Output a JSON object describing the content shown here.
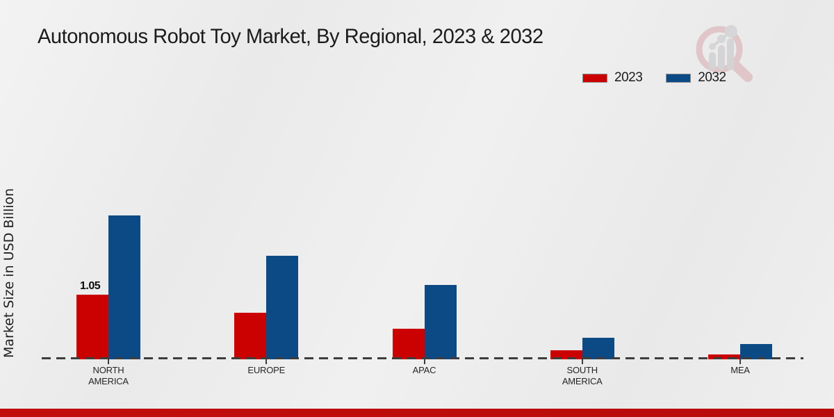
{
  "chart_data": {
    "type": "bar",
    "title": "Autonomous Robot Toy Market, By Regional, 2023 & 2032",
    "xlabel": "",
    "ylabel": "Market Size in USD Billion",
    "categories": [
      "NORTH AMERICA",
      "EUROPE",
      "APAC",
      "SOUTH AMERICA",
      "MEA"
    ],
    "series": [
      {
        "name": "2023",
        "color": "#cb0101",
        "values": [
          1.05,
          0.76,
          0.5,
          0.15,
          0.08
        ]
      },
      {
        "name": "2032",
        "color": "#0c4a85",
        "values": [
          2.34,
          1.68,
          1.21,
          0.35,
          0.25
        ]
      }
    ],
    "value_labels": [
      {
        "series": "2023",
        "category": "NORTH AMERICA",
        "text": "1.05"
      }
    ],
    "legend_position": "top-right",
    "grid": false,
    "baseline_style": "dashed",
    "ylim": [
      0,
      2.6
    ]
  },
  "colors": {
    "red_2023": "#cb0101",
    "blue_2032": "#0c4a85",
    "footer_bar": "#c00d0d",
    "baseline_dash": "#3d3d3d",
    "background": "#ededed",
    "title_text": "#1b1b1b"
  },
  "watermark": {
    "icon": "magnifier-bar-chart-logo"
  }
}
